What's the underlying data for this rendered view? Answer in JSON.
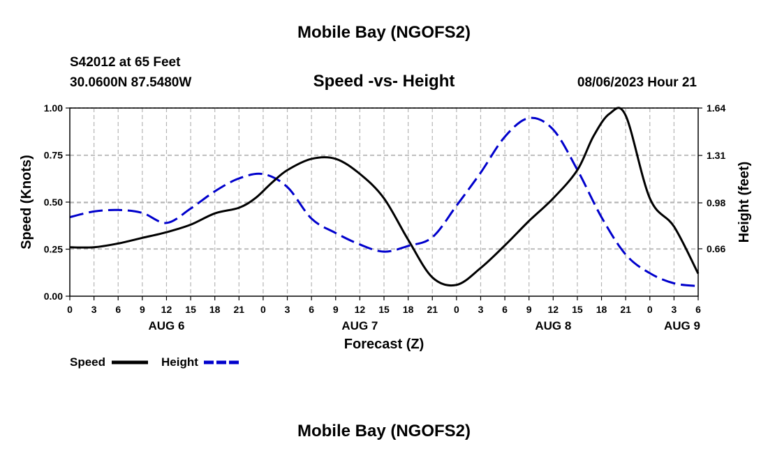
{
  "header": {
    "title": "Mobile Bay (NGOFS2)",
    "station": "S42012 at 65 Feet",
    "location": "30.0600N  87.5480W",
    "subtitle": "Speed -vs- Height",
    "datetime": "08/06/2023 Hour 21",
    "footer_title": "Mobile Bay (NGOFS2)"
  },
  "chart_data": {
    "type": "line",
    "title": "Speed -vs- Height",
    "xlabel": "Forecast (Z)",
    "ylabel": "Speed (Knots)",
    "y2label": "Height (feet)",
    "xlim": [
      0,
      78
    ],
    "ylim": [
      0,
      1.0
    ],
    "y2lim": [
      0.33,
      1.64
    ],
    "x_ticks": [
      0,
      3,
      6,
      9,
      12,
      15,
      18,
      21,
      24,
      27,
      30,
      33,
      36,
      39,
      42,
      45,
      48,
      51,
      54,
      57,
      60,
      63,
      66,
      69,
      72,
      75,
      78
    ],
    "x_tick_labels": [
      "0",
      "3",
      "6",
      "9",
      "12",
      "15",
      "18",
      "21",
      "0",
      "3",
      "6",
      "9",
      "12",
      "15",
      "18",
      "21",
      "0",
      "3",
      "6",
      "9",
      "12",
      "15",
      "18",
      "21",
      "0",
      "3",
      "6"
    ],
    "date_labels": [
      {
        "x": 12,
        "text": "AUG 6"
      },
      {
        "x": 36,
        "text": "AUG 7"
      },
      {
        "x": 60,
        "text": "AUG 8"
      },
      {
        "x": 76,
        "text": "AUG 9"
      }
    ],
    "y_ticks": [
      0.0,
      0.25,
      0.5,
      0.75,
      1.0
    ],
    "y_tick_labels": [
      "0.00",
      "0.25",
      "0.50",
      "0.75",
      "1.00"
    ],
    "y2_ticks": [
      0.66,
      0.98,
      1.31,
      1.64
    ],
    "y2_tick_labels": [
      "0.66",
      "0.98",
      "1.31",
      "1.64"
    ],
    "grid": true,
    "legend_position": "bottom-left",
    "series": [
      {
        "name": "Speed",
        "axis": "left",
        "color": "#000000",
        "style": "solid",
        "x": [
          0,
          3,
          6,
          9,
          12,
          15,
          18,
          21,
          23,
          25,
          27,
          30,
          33,
          36,
          39,
          42,
          45,
          48,
          51,
          54,
          57,
          60,
          63,
          65,
          67,
          69,
          72,
          75,
          78
        ],
        "values": [
          0.26,
          0.26,
          0.28,
          0.31,
          0.34,
          0.38,
          0.44,
          0.47,
          0.52,
          0.6,
          0.67,
          0.73,
          0.73,
          0.65,
          0.52,
          0.3,
          0.1,
          0.06,
          0.15,
          0.27,
          0.4,
          0.52,
          0.67,
          0.85,
          0.97,
          0.96,
          0.52,
          0.37,
          0.12
        ]
      },
      {
        "name": "Height",
        "axis": "right",
        "color": "#0000cc",
        "style": "dashed",
        "x": [
          0,
          3,
          6,
          9,
          12,
          15,
          18,
          21,
          24,
          27,
          30,
          33,
          36,
          39,
          42,
          45,
          48,
          51,
          54,
          57,
          60,
          63,
          66,
          69,
          72,
          75,
          78
        ],
        "values": [
          0.88,
          0.92,
          0.93,
          0.91,
          0.84,
          0.94,
          1.06,
          1.15,
          1.18,
          1.09,
          0.87,
          0.77,
          0.69,
          0.64,
          0.68,
          0.74,
          0.96,
          1.19,
          1.44,
          1.57,
          1.49,
          1.21,
          0.88,
          0.62,
          0.49,
          0.42,
          0.4
        ]
      }
    ]
  }
}
